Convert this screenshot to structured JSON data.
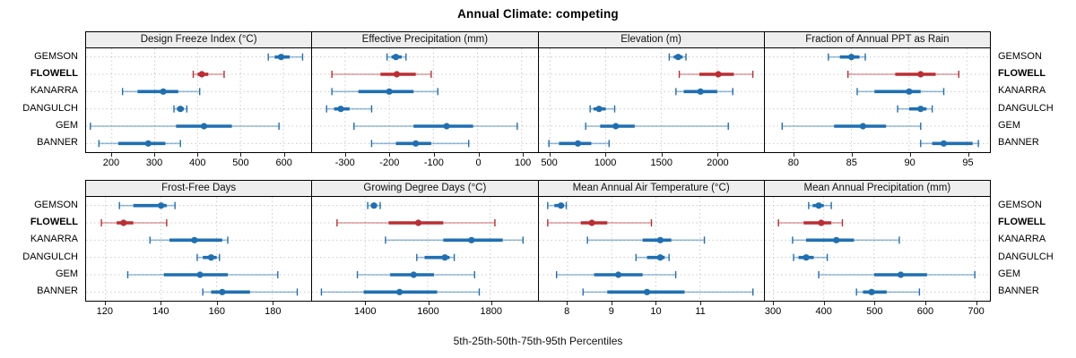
{
  "title": "Annual Climate: competing",
  "footer": "5th-25th-50th-75th-95th Percentiles",
  "highlight_station": "FLOWELL",
  "colors": {
    "series": "#1f6fb2",
    "highlight": "#bb2d32",
    "grid": "#cbcbcb",
    "strip_bg": "#eeeeee",
    "border": "#000000"
  },
  "chart_data": {
    "type": "dotplot",
    "subtype": "percentile-intervals",
    "layout": {
      "rows": 2,
      "cols": 4
    },
    "legend_position": "none",
    "grid": "dotted",
    "categories": [
      "GEMSON",
      "FLOWELL",
      "KANARRA",
      "DANGULCH",
      "GEM",
      "BANNER"
    ],
    "percentiles": [
      5,
      25,
      50,
      75,
      95
    ],
    "panels": [
      {
        "title": "Design Freeze Index (°C)",
        "xlim": [
          140,
          665
        ],
        "ticks": [
          200,
          300,
          400,
          500,
          600
        ],
        "series": [
          [
            565,
            580,
            595,
            615,
            645
          ],
          [
            390,
            400,
            410,
            425,
            462
          ],
          [
            225,
            260,
            320,
            355,
            405
          ],
          [
            345,
            352,
            360,
            368,
            375
          ],
          [
            150,
            350,
            415,
            480,
            590
          ],
          [
            170,
            215,
            285,
            325,
            360
          ]
        ]
      },
      {
        "title": "Effective Precipitation (mm)",
        "xlim": [
          -375,
          135
        ],
        "ticks": [
          -300,
          -200,
          -100,
          0,
          100
        ],
        "series": [
          [
            -205,
            -195,
            -185,
            -172,
            -162
          ],
          [
            -330,
            -220,
            -183,
            -140,
            -105
          ],
          [
            -330,
            -270,
            -200,
            -145,
            -90
          ],
          [
            -342,
            -325,
            -310,
            -290,
            -240
          ],
          [
            -280,
            -145,
            -70,
            -10,
            90
          ],
          [
            -240,
            -185,
            -140,
            -105,
            -20
          ]
        ]
      },
      {
        "title": "Elevation (m)",
        "xlim": [
          400,
          2420
        ],
        "ticks": [
          500,
          1000,
          1500,
          2000
        ],
        "series": [
          [
            1570,
            1610,
            1650,
            1690,
            1720
          ],
          [
            1660,
            1840,
            2010,
            2150,
            2320
          ],
          [
            1630,
            1700,
            1850,
            2000,
            2140
          ],
          [
            860,
            890,
            940,
            1000,
            1080
          ],
          [
            820,
            950,
            1090,
            1260,
            2100
          ],
          [
            490,
            580,
            750,
            870,
            1030
          ]
        ]
      },
      {
        "title": "Fraction of Annual PPT as Rain",
        "xlim": [
          77.5,
          97
        ],
        "ticks": [
          80,
          85,
          90,
          95
        ],
        "series": [
          [
            83,
            84,
            85,
            85.7,
            86.2
          ],
          [
            84.7,
            88.8,
            91,
            92.3,
            94.3
          ],
          [
            85.5,
            87,
            90,
            91,
            93
          ],
          [
            89,
            90,
            91,
            91.5,
            92
          ],
          [
            79,
            83.5,
            86,
            88,
            91
          ],
          [
            91,
            92,
            93,
            95.5,
            96
          ]
        ]
      },
      {
        "title": "Frost-Free Days",
        "xlim": [
          113,
          194
        ],
        "ticks": [
          120,
          140,
          160,
          180
        ],
        "series": [
          [
            125,
            130,
            140,
            142,
            145
          ],
          [
            118.5,
            124,
            126.5,
            130,
            142
          ],
          [
            136,
            143,
            152,
            162,
            164
          ],
          [
            153,
            155,
            158,
            160,
            161
          ],
          [
            128,
            141,
            154,
            164,
            182
          ],
          [
            155,
            158,
            162,
            172,
            189
          ]
        ]
      },
      {
        "title": "Growing Degree Days (°C)",
        "xlim": [
          1230,
          1950
        ],
        "ticks": [
          1400,
          1600,
          1800
        ],
        "series": [
          [
            1408,
            1418,
            1428,
            1438,
            1448
          ],
          [
            1310,
            1475,
            1570,
            1650,
            1815
          ],
          [
            1465,
            1650,
            1740,
            1840,
            1905
          ],
          [
            1565,
            1590,
            1655,
            1670,
            1685
          ],
          [
            1375,
            1480,
            1555,
            1620,
            1750
          ],
          [
            1260,
            1395,
            1510,
            1630,
            1765
          ]
        ]
      },
      {
        "title": "Mean Annual Air Temperature (°C)",
        "xlim": [
          7.35,
          12.45
        ],
        "ticks": [
          8,
          9,
          10,
          11
        ],
        "series": [
          [
            7.55,
            7.7,
            7.85,
            7.92,
            7.97
          ],
          [
            7.55,
            8.3,
            8.55,
            8.9,
            9.9
          ],
          [
            8.45,
            9.7,
            10.1,
            10.35,
            11.1
          ],
          [
            9.55,
            9.8,
            10.1,
            10.2,
            10.3
          ],
          [
            7.75,
            8.6,
            9.15,
            9.7,
            10.45
          ],
          [
            8.35,
            8.9,
            9.8,
            10.65,
            12.2
          ]
        ]
      },
      {
        "title": "Mean Annual Precipitation (mm)",
        "xlim": [
          283,
          730
        ],
        "ticks": [
          300,
          400,
          500,
          600,
          700
        ],
        "series": [
          [
            370,
            378,
            390,
            400,
            415
          ],
          [
            310,
            360,
            395,
            415,
            437
          ],
          [
            338,
            365,
            425,
            460,
            550
          ],
          [
            340,
            350,
            365,
            380,
            407
          ],
          [
            390,
            500,
            553,
            605,
            700
          ],
          [
            465,
            478,
            495,
            525,
            590
          ]
        ]
      }
    ]
  }
}
